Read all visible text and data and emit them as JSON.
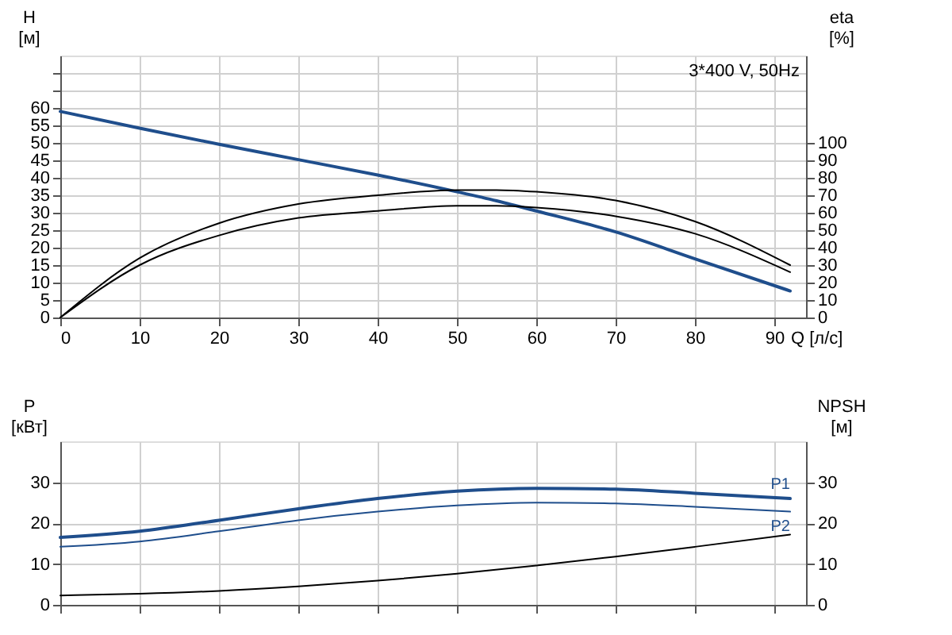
{
  "chart_data": [
    {
      "type": "line",
      "xlabel": "Q [л/с]",
      "ylabel": "H [м]",
      "y2label": "eta [%]",
      "annotations": [
        "3*400 V, 50Hz"
      ],
      "x": [
        0,
        10,
        20,
        30,
        40,
        50,
        55,
        60,
        70,
        80,
        92
      ],
      "series": [
        {
          "color": "#1f4e8c",
          "values": [
            59,
            54.2,
            49.6,
            45.2,
            40.8,
            36,
            33.4,
            30.5,
            24.5,
            16.8,
            7.6
          ]
        },
        {
          "color": "#000000",
          "axis": "y2",
          "values": [
            0,
            34,
            54,
            65,
            70,
            73,
            73,
            72,
            67,
            55,
            30
          ]
        },
        {
          "color": "#000000",
          "axis": "y2",
          "values": [
            0,
            30,
            47,
            57,
            61,
            64,
            64,
            63,
            58,
            48,
            26
          ]
        }
      ],
      "xlim": [
        0,
        94
      ],
      "xticks": [
        0,
        10,
        20,
        30,
        40,
        50,
        60,
        70,
        80,
        90
      ],
      "ylim": [
        0,
        75
      ],
      "yticks": [
        0,
        5,
        10,
        15,
        20,
        25,
        30,
        35,
        40,
        45,
        50,
        55,
        60,
        {
          "value": 65,
          "label": null
        },
        {
          "value": 70,
          "label": null
        }
      ],
      "y2lim": [
        0,
        150
      ],
      "y2ticks": [
        0,
        10,
        20,
        30,
        40,
        50,
        60,
        70,
        80,
        90,
        100
      ],
      "grid": true,
      "marker": "none",
      "line_style": "solid"
    },
    {
      "type": "line",
      "ylabel": "P [кВт]",
      "y2label": "NPSH [м]",
      "x": [
        0,
        10,
        20,
        30,
        40,
        50,
        60,
        70,
        80,
        92
      ],
      "series": [
        {
          "name": "P1",
          "color": "#1f4e8c",
          "values": [
            16.5,
            18,
            20.7,
            23.5,
            26,
            27.8,
            28.5,
            28.3,
            27.3,
            26
          ]
        },
        {
          "name": "P2",
          "color": "#1f4e8c",
          "values": [
            14.2,
            15.5,
            18,
            20.7,
            22.8,
            24.3,
            25,
            24.8,
            24,
            22.8
          ]
        },
        {
          "color": "#000000",
          "axis": "y2",
          "values": [
            2.3,
            2.7,
            3.4,
            4.5,
            5.9,
            7.6,
            9.6,
            11.8,
            14.2,
            17.2
          ]
        }
      ],
      "xlim": [
        0,
        94
      ],
      "xticks": [
        0,
        10,
        20,
        30,
        40,
        50,
        60,
        70,
        80,
        90
      ],
      "ylim": [
        0,
        40
      ],
      "yticks": [
        0,
        10,
        20,
        30
      ],
      "y2lim": [
        0,
        40
      ],
      "y2ticks": [
        0,
        10,
        20,
        30
      ],
      "tick_labels": "y",
      "grid": true,
      "marker": "none",
      "line_style": "solid"
    }
  ]
}
